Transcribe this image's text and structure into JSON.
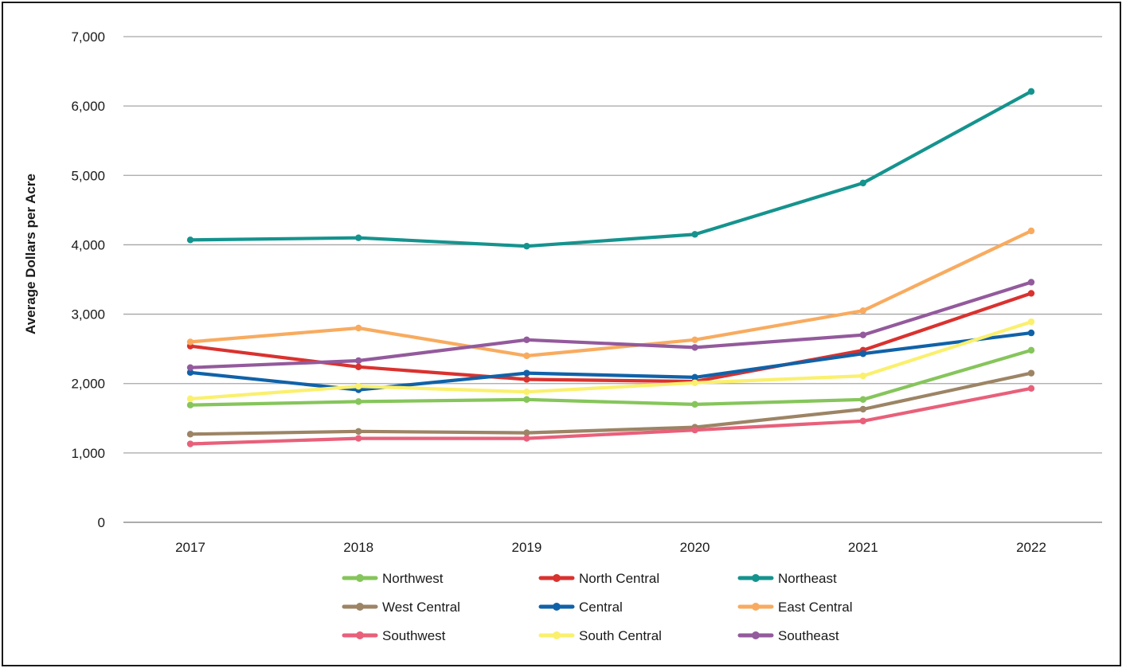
{
  "chart_data": {
    "type": "line",
    "title": "",
    "xlabel": "",
    "ylabel": "Average Dollars per Acre",
    "x": [
      "2017",
      "2018",
      "2019",
      "2020",
      "2021",
      "2022"
    ],
    "ylim": [
      0,
      7000
    ],
    "yticks": [
      0,
      1000,
      2000,
      3000,
      4000,
      5000,
      6000,
      7000
    ],
    "ytick_labels": [
      "0",
      "1,000",
      "2,000",
      "3,000",
      "4,000",
      "5,000",
      "6,000",
      "7,000"
    ],
    "grid": "horizontal",
    "legend_position": "bottom",
    "series": [
      {
        "name": "Northwest",
        "color": "#86c55b",
        "values": [
          1690,
          1740,
          1770,
          1700,
          1770,
          2480
        ]
      },
      {
        "name": "North Central",
        "color": "#d9322f",
        "values": [
          2540,
          2240,
          2060,
          2030,
          2480,
          3300
        ]
      },
      {
        "name": "Northeast",
        "color": "#15938e",
        "values": [
          4070,
          4100,
          3980,
          4150,
          4890,
          6210
        ]
      },
      {
        "name": "West Central",
        "color": "#9c8465",
        "values": [
          1270,
          1310,
          1290,
          1370,
          1630,
          2150
        ]
      },
      {
        "name": "Central",
        "color": "#1062a8",
        "values": [
          2160,
          1910,
          2150,
          2090,
          2430,
          2730
        ]
      },
      {
        "name": "East Central",
        "color": "#f8ab5f",
        "values": [
          2600,
          2800,
          2400,
          2630,
          3050,
          4200
        ]
      },
      {
        "name": "Southwest",
        "color": "#e8607a",
        "values": [
          1130,
          1210,
          1210,
          1330,
          1460,
          1930
        ]
      },
      {
        "name": "South Central",
        "color": "#faf06e",
        "values": [
          1780,
          1960,
          1880,
          2010,
          2110,
          2890
        ]
      },
      {
        "name": "Southeast",
        "color": "#935a9c",
        "values": [
          2230,
          2330,
          2630,
          2520,
          2700,
          3460
        ]
      }
    ]
  }
}
